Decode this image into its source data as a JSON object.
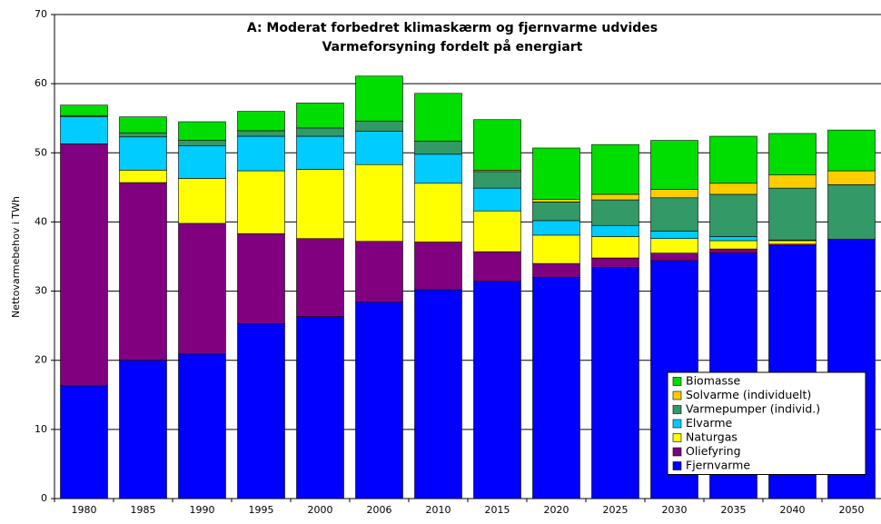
{
  "chart_data": {
    "type": "stacked_bar",
    "title": "A: Moderat forbedret klimaskærm og fjernvarme udvides",
    "subtitle": "Varmeforsyning fordelt på energiart",
    "y_label": "Nettovarmebehov i TWh",
    "categories": [
      "1980",
      "1985",
      "1990",
      "1995",
      "2000",
      "2006",
      "2010",
      "2015",
      "2020",
      "2025",
      "2030",
      "2035",
      "2040",
      "2050"
    ],
    "series": [
      {
        "name": "Fjernvarme",
        "color": "#0000ff",
        "values": [
          16.3,
          20.0,
          20.9,
          25.3,
          26.3,
          28.4,
          30.2,
          31.4,
          32.0,
          33.4,
          34.4,
          35.5,
          36.6,
          37.5
        ]
      },
      {
        "name": "Oliefyring",
        "color": "#800080",
        "values": [
          35.0,
          25.7,
          18.9,
          13.0,
          11.3,
          8.8,
          6.9,
          4.3,
          2.0,
          1.4,
          1.1,
          0.6,
          0.2,
          0
        ]
      },
      {
        "name": "Naturgas",
        "color": "#ffff00",
        "values": [
          0,
          1.8,
          6.5,
          9.1,
          10.0,
          11.1,
          8.5,
          5.9,
          4.1,
          3.1,
          2.1,
          1.2,
          0.5,
          0
        ]
      },
      {
        "name": "Elvarme",
        "color": "#00ccff",
        "values": [
          3.9,
          4.8,
          4.7,
          5.0,
          4.8,
          4.8,
          4.2,
          3.3,
          2.1,
          1.6,
          1.1,
          0.6,
          0.1,
          0
        ]
      },
      {
        "name": "Varmepumper (individ.)",
        "color": "#339966",
        "values": [
          0.2,
          0.6,
          0.8,
          0.8,
          1.2,
          1.5,
          1.9,
          2.4,
          2.7,
          3.7,
          4.8,
          6.1,
          7.5,
          7.9
        ]
      },
      {
        "name": "Solvarme (individuelt)",
        "color": "#ffcc00",
        "values": [
          0,
          0,
          0,
          0,
          0,
          0,
          0,
          0.2,
          0.4,
          0.8,
          1.2,
          1.6,
          1.9,
          2.0
        ]
      },
      {
        "name": "Biomasse",
        "color": "#00dd00",
        "values": [
          1.5,
          2.3,
          2.7,
          2.8,
          3.6,
          6.5,
          6.9,
          7.3,
          7.4,
          7.2,
          7.1,
          6.8,
          6.0,
          5.9
        ]
      }
    ],
    "ylim": [
      0,
      70
    ],
    "yticks": [
      0,
      10,
      20,
      30,
      40,
      50,
      60,
      70
    ],
    "grid": true,
    "legend": "lower right"
  }
}
